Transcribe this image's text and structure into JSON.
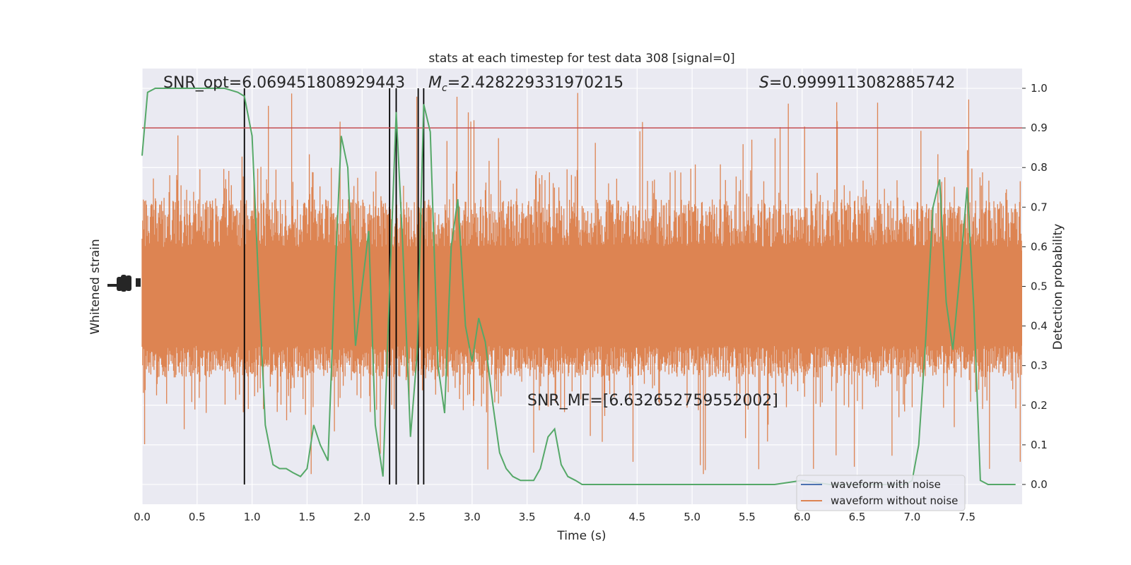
{
  "chart_data": {
    "type": "line",
    "title": "stats at each timestep for test data 308 [signal=0]",
    "xlabel": "Time (s)",
    "ylabel_left": "Whitened strain",
    "ylabel_right": "Detection probability",
    "xlim": [
      0,
      8
    ],
    "ylim_right": [
      -0.05,
      1.05
    ],
    "grid": true,
    "legend_position": "lower-right",
    "x_ticks": [
      "0.0",
      "0.5",
      "1.0",
      "1.5",
      "2.0",
      "2.5",
      "3.0",
      "3.5",
      "4.0",
      "4.5",
      "5.0",
      "5.5",
      "6.0",
      "6.5",
      "7.0",
      "7.5"
    ],
    "y_ticks_right": [
      "0.0",
      "0.1",
      "0.2",
      "0.3",
      "0.4",
      "0.5",
      "0.6",
      "0.7",
      "0.8",
      "0.9",
      "1.0"
    ],
    "annotations": {
      "snr_opt": "SNR_opt=6.069451808929443",
      "mc_symbol": "M",
      "mc_sub": "c",
      "mc_value": "=2.428229331970215",
      "s_symbol": "S",
      "s_value": "=0.9999113082885742",
      "snr_mf": "SNR_MF=[6.632652759552002]"
    },
    "threshold": {
      "value": 0.9,
      "color": "#c44e52"
    },
    "vertical_lines_x": [
      0.93,
      2.25,
      2.31,
      2.51,
      2.56
    ],
    "series": [
      {
        "name": "waveform with noise",
        "color": "#4c72b0"
      },
      {
        "name": "waveform without noise",
        "color": "#dd8452"
      }
    ],
    "detection_probability": {
      "color": "#55a868",
      "x": [
        0.0,
        0.05,
        0.12,
        0.25,
        0.37,
        0.5,
        0.62,
        0.75,
        0.87,
        0.93,
        1.0,
        1.06,
        1.12,
        1.19,
        1.25,
        1.31,
        1.37,
        1.44,
        1.5,
        1.56,
        1.62,
        1.69,
        1.75,
        1.81,
        1.87,
        1.94,
        2.0,
        2.06,
        2.12,
        2.19,
        2.25,
        2.31,
        2.37,
        2.44,
        2.5,
        2.56,
        2.62,
        2.69,
        2.75,
        2.81,
        2.87,
        2.94,
        3.0,
        3.06,
        3.12,
        3.19,
        3.25,
        3.31,
        3.37,
        3.44,
        3.5,
        3.56,
        3.62,
        3.69,
        3.75,
        3.81,
        3.87,
        3.94,
        4.0,
        4.06,
        4.12,
        4.19,
        4.25,
        4.5,
        4.75,
        5.0,
        5.25,
        5.5,
        5.75,
        6.0,
        6.25,
        6.5,
        6.75,
        6.87,
        6.94,
        7.0,
        7.06,
        7.12,
        7.19,
        7.25,
        7.31,
        7.37,
        7.44,
        7.5,
        7.56,
        7.62,
        7.69,
        7.75,
        7.94
      ],
      "y": [
        0.83,
        0.99,
        1.0,
        1.0,
        1.0,
        1.0,
        1.0,
        1.0,
        0.99,
        0.98,
        0.88,
        0.5,
        0.15,
        0.05,
        0.04,
        0.04,
        0.03,
        0.02,
        0.04,
        0.15,
        0.1,
        0.06,
        0.5,
        0.88,
        0.8,
        0.35,
        0.5,
        0.64,
        0.15,
        0.02,
        0.5,
        0.94,
        0.6,
        0.12,
        0.33,
        0.96,
        0.89,
        0.3,
        0.18,
        0.6,
        0.72,
        0.4,
        0.31,
        0.42,
        0.36,
        0.2,
        0.08,
        0.04,
        0.02,
        0.01,
        0.01,
        0.01,
        0.04,
        0.12,
        0.14,
        0.05,
        0.02,
        0.01,
        0.0,
        0.0,
        0.0,
        0.0,
        0.0,
        0.0,
        0.0,
        0.0,
        0.0,
        0.0,
        0.0,
        0.01,
        0.0,
        0.0,
        0.0,
        0.0,
        0.0,
        0.01,
        0.1,
        0.35,
        0.7,
        0.77,
        0.46,
        0.34,
        0.55,
        0.75,
        0.45,
        0.01,
        0.0,
        0.0,
        0.0
      ]
    }
  }
}
